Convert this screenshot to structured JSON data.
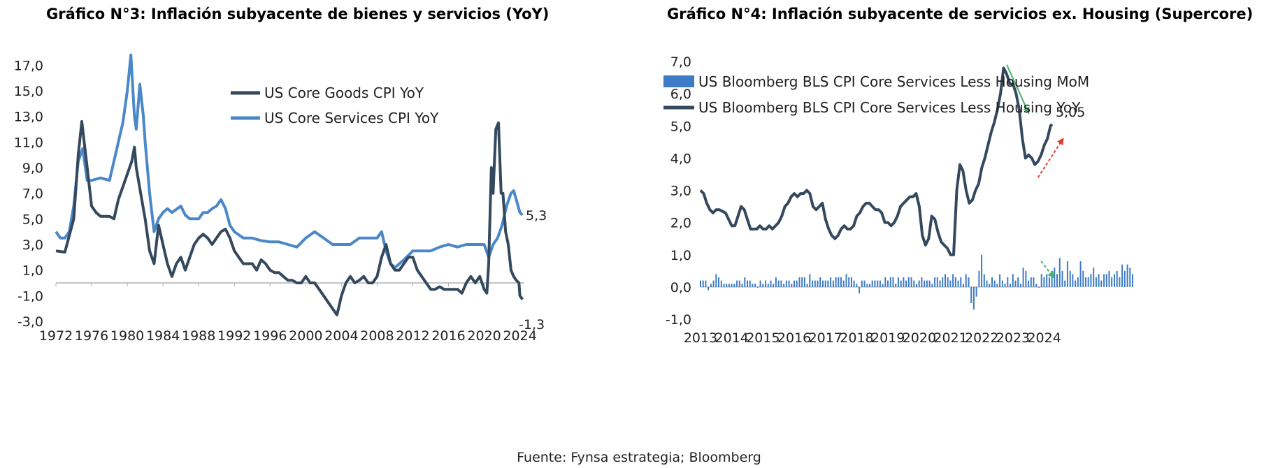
{
  "source": "Fuente: Fynsa estrategia; Bloomberg",
  "colors": {
    "dark_series": "#34495e",
    "light_series": "#4a88c9",
    "bar": "#3d7bc6",
    "arrow_down": "#46b36a",
    "arrow_up": "#e03c31",
    "axis": "#b0b0b0"
  },
  "chart_data": [
    {
      "type": "line",
      "title": "Gráfico N°3: Inflación subyacente de bienes y servicios (YoY)",
      "xlabel": "",
      "ylabel": "",
      "xlim": [
        1972,
        2024.5
      ],
      "ylim": [
        -3.0,
        18.0
      ],
      "x_ticks": [
        "1972",
        "1976",
        "1980",
        "1984",
        "1988",
        "1992",
        "1996",
        "2000",
        "2004",
        "2008",
        "2012",
        "2016",
        "2020",
        "2024"
      ],
      "y_ticks": [
        "17,0",
        "15,0",
        "13,0",
        "11,0",
        "9,0",
        "7,0",
        "5,0",
        "3,0",
        "1,0",
        "-1,0",
        "-3,0"
      ],
      "grid": false,
      "legend_position": "top-right",
      "annotations": [
        {
          "text": "5,3",
          "x": 2024.3,
          "y": 5.3
        },
        {
          "text": "-1,3",
          "x": 2024.3,
          "y": -1.3
        }
      ],
      "series": [
        {
          "name": "US Core Goods CPI YoY",
          "color": "#34495e",
          "x": [
            1972,
            1973,
            1974,
            1974.5,
            1974.9,
            1975.5,
            1976,
            1976.5,
            1977,
            1978,
            1978.5,
            1979,
            1979.5,
            1980,
            1980.5,
            1980.8,
            1981,
            1981.5,
            1982,
            1982.5,
            1983,
            1983.5,
            1984,
            1984.5,
            1985,
            1985.5,
            1986,
            1986.5,
            1987,
            1987.5,
            1988,
            1988.5,
            1989,
            1989.5,
            1990,
            1990.5,
            1991,
            1991.5,
            1992,
            1992.5,
            1993,
            1993.5,
            1994,
            1994.5,
            1995,
            1995.5,
            1996,
            1996.5,
            1997,
            1997.5,
            1998,
            1998.5,
            1999,
            1999.5,
            2000,
            2000.5,
            2001,
            2001.5,
            2002,
            2002.5,
            2003,
            2003.5,
            2004,
            2004.5,
            2005,
            2005.5,
            2006,
            2006.5,
            2007,
            2007.5,
            2008,
            2008.5,
            2009,
            2009.5,
            2010,
            2010.5,
            2011,
            2011.5,
            2012,
            2012.5,
            2013,
            2013.5,
            2014,
            2014.5,
            2015,
            2015.5,
            2016,
            2016.5,
            2017,
            2017.5,
            2018,
            2018.5,
            2019,
            2019.5,
            2020,
            2020.3,
            2020.5,
            2020.8,
            2021,
            2021.3,
            2021.6,
            2021.9,
            2022.1,
            2022.4,
            2022.7,
            2023,
            2023.3,
            2023.6,
            2023.9,
            2024,
            2024.3
          ],
          "values": [
            2.5,
            2.4,
            5.0,
            10.0,
            12.6,
            9.0,
            6.0,
            5.5,
            5.2,
            5.2,
            5.0,
            6.5,
            7.5,
            8.5,
            9.5,
            10.6,
            9.0,
            7.0,
            5.0,
            2.5,
            1.5,
            4.5,
            3.0,
            1.5,
            0.5,
            1.5,
            2.0,
            1.0,
            2.0,
            3.0,
            3.5,
            3.8,
            3.5,
            3.0,
            3.5,
            4.0,
            4.2,
            3.5,
            2.5,
            2.0,
            1.5,
            1.5,
            1.5,
            1.0,
            1.8,
            1.5,
            1.0,
            0.8,
            0.8,
            0.5,
            0.2,
            0.2,
            0.0,
            0.0,
            0.5,
            0.0,
            0.0,
            -0.5,
            -1.0,
            -1.5,
            -2.0,
            -2.5,
            -1.0,
            0.0,
            0.5,
            0.0,
            0.2,
            0.5,
            0.0,
            0.0,
            0.5,
            2.0,
            3.0,
            1.5,
            1.0,
            1.0,
            1.5,
            2.0,
            2.0,
            1.0,
            0.5,
            0.0,
            -0.5,
            -0.5,
            -0.3,
            -0.5,
            -0.5,
            -0.5,
            -0.5,
            -0.8,
            0.0,
            0.5,
            0.0,
            0.5,
            -0.5,
            -0.8,
            1.5,
            9.0,
            7.0,
            12.0,
            12.5,
            7.0,
            7.0,
            4.0,
            3.0,
            1.0,
            0.5,
            0.2,
            0.0,
            -1.0,
            -1.3
          ]
        },
        {
          "name": "US Core Services CPI YoY",
          "color": "#4a88c9",
          "x": [
            1972,
            1972.5,
            1973,
            1973.5,
            1974,
            1974.5,
            1975,
            1975.5,
            1976,
            1977,
            1978,
            1978.5,
            1979,
            1979.5,
            1980,
            1980.4,
            1980.8,
            1981,
            1981.4,
            1981.8,
            1982,
            1982.5,
            1983,
            1983.5,
            1984,
            1984.5,
            1985,
            1986,
            1986.5,
            1987,
            1988,
            1988.5,
            1989,
            1989.5,
            1990,
            1990.5,
            1991,
            1991.5,
            1992,
            1993,
            1994,
            1995,
            1996,
            1997,
            1998,
            1999,
            2000,
            2001,
            2002,
            2003,
            2004,
            2005,
            2006,
            2007,
            2008,
            2008.5,
            2009,
            2009.5,
            2010,
            2010.5,
            2011,
            2012,
            2013,
            2014,
            2015,
            2016,
            2017,
            2018,
            2019,
            2020,
            2020.5,
            2021,
            2021.5,
            2022,
            2022.5,
            2023,
            2023.3,
            2023.6,
            2024,
            2024.3
          ],
          "values": [
            4.0,
            3.5,
            3.5,
            4.0,
            6.0,
            9.5,
            10.5,
            8.0,
            8.0,
            8.2,
            8.0,
            9.5,
            11.0,
            12.5,
            15.0,
            17.8,
            13.0,
            12.0,
            15.5,
            13.0,
            11.0,
            7.0,
            4.0,
            5.0,
            5.5,
            5.8,
            5.5,
            6.0,
            5.3,
            5.0,
            5.0,
            5.5,
            5.5,
            5.8,
            6.0,
            6.5,
            5.8,
            4.5,
            4.0,
            3.5,
            3.5,
            3.3,
            3.2,
            3.2,
            3.0,
            2.8,
            3.5,
            4.0,
            3.5,
            3.0,
            3.0,
            3.0,
            3.5,
            3.5,
            3.5,
            4.0,
            2.5,
            1.5,
            1.2,
            1.5,
            1.8,
            2.5,
            2.5,
            2.5,
            2.8,
            3.0,
            2.8,
            3.0,
            3.0,
            3.0,
            2.0,
            3.0,
            3.5,
            4.5,
            6.0,
            7.0,
            7.2,
            6.5,
            5.5,
            5.3
          ]
        }
      ]
    },
    {
      "type": "bar",
      "title": "Gráfico N°4: Inflación subyacente de servicios ex. Housing (Supercore)",
      "xlabel": "",
      "ylabel": "",
      "xlim": [
        2013,
        2024.5
      ],
      "ylim": [
        -1.0,
        7.0
      ],
      "x_ticks": [
        "2013",
        "2014",
        "2015",
        "2016",
        "2017",
        "2018",
        "2019",
        "2020",
        "2021",
        "2022",
        "2023",
        "2024"
      ],
      "y_ticks": [
        "7,0",
        "6,0",
        "5,0",
        "4,0",
        "3,0",
        "2,0",
        "1,0",
        "0,0",
        "-1,0"
      ],
      "grid": false,
      "legend_position": "top-left",
      "annotations": [
        {
          "text": "5,05",
          "x": 2024.25,
          "y": 5.05
        }
      ],
      "series": [
        {
          "name": "US Bloomberg BLS CPI Core Services Less Housing MoM",
          "type": "bar",
          "color": "#3d7bc6",
          "start": 2013.0,
          "step": 0.0833,
          "values": [
            0.2,
            0.2,
            0.2,
            -0.1,
            0.1,
            0.2,
            0.4,
            0.3,
            0.2,
            0.1,
            0.1,
            0.1,
            0.1,
            0.1,
            0.2,
            0.2,
            0.1,
            0.3,
            0.2,
            0.2,
            0.1,
            0.1,
            0.0,
            0.2,
            0.1,
            0.2,
            0.1,
            0.2,
            0.1,
            0.3,
            0.2,
            0.2,
            0.1,
            0.2,
            0.2,
            0.1,
            0.2,
            0.2,
            0.3,
            0.3,
            0.3,
            0.1,
            0.4,
            0.2,
            0.2,
            0.2,
            0.3,
            0.2,
            0.2,
            0.2,
            0.3,
            0.2,
            0.3,
            0.3,
            0.3,
            0.2,
            0.4,
            0.3,
            0.3,
            0.2,
            0.1,
            -0.2,
            0.2,
            0.2,
            0.1,
            0.1,
            0.2,
            0.2,
            0.2,
            0.2,
            0.1,
            0.3,
            0.2,
            0.3,
            0.3,
            0.1,
            0.3,
            0.2,
            0.3,
            0.2,
            0.3,
            0.3,
            0.2,
            0.1,
            0.2,
            0.3,
            0.2,
            0.2,
            0.2,
            0.1,
            0.3,
            0.3,
            0.2,
            0.3,
            0.4,
            0.3,
            0.2,
            0.4,
            0.3,
            0.2,
            0.3,
            0.1,
            0.4,
            0.3,
            -0.5,
            -0.7,
            -0.3,
            0.5,
            1.0,
            0.4,
            0.2,
            0.1,
            0.3,
            0.2,
            0.1,
            0.4,
            0.2,
            0.1,
            0.3,
            0.1,
            0.4,
            0.2,
            0.3,
            0.1,
            0.6,
            0.5,
            0.2,
            0.3,
            0.3,
            0.1,
            0.0,
            0.4,
            0.3,
            0.4,
            0.3,
            0.5,
            0.6,
            0.4,
            0.9,
            0.5,
            0.2,
            0.8,
            0.5,
            0.4,
            0.2,
            0.3,
            0.8,
            0.5,
            0.3,
            0.3,
            0.4,
            0.6,
            0.3,
            0.4,
            0.2,
            0.4,
            0.4,
            0.5,
            0.3,
            0.4,
            0.5,
            0.3,
            0.7,
            0.5,
            0.7,
            0.6,
            0.4
          ]
        },
        {
          "name": "US Bloomberg BLS CPI Core Services Less Housing YoY",
          "type": "line",
          "color": "#34495e",
          "x": [
            2013,
            2013.1,
            2013.2,
            2013.3,
            2013.4,
            2013.5,
            2013.6,
            2013.8,
            2013.9,
            2014,
            2014.1,
            2014.2,
            2014.3,
            2014.4,
            2014.5,
            2014.6,
            2014.7,
            2014.8,
            2014.9,
            2015,
            2015.1,
            2015.2,
            2015.3,
            2015.4,
            2015.5,
            2015.6,
            2015.7,
            2015.8,
            2015.9,
            2016,
            2016.1,
            2016.2,
            2016.3,
            2016.4,
            2016.5,
            2016.6,
            2016.7,
            2016.8,
            2016.9,
            2017,
            2017.1,
            2017.2,
            2017.3,
            2017.4,
            2017.5,
            2017.6,
            2017.7,
            2017.8,
            2017.9,
            2018,
            2018.1,
            2018.2,
            2018.3,
            2018.4,
            2018.5,
            2018.6,
            2018.7,
            2018.8,
            2018.9,
            2019,
            2019.1,
            2019.2,
            2019.3,
            2019.4,
            2019.5,
            2019.6,
            2019.7,
            2019.8,
            2019.9,
            2020,
            2020.1,
            2020.2,
            2020.3,
            2020.4,
            2020.5,
            2020.6,
            2020.7,
            2020.8,
            2020.9,
            2021,
            2021.1,
            2021.2,
            2021.3,
            2021.4,
            2021.5,
            2021.6,
            2021.7,
            2021.8,
            2021.9,
            2022,
            2022.1,
            2022.2,
            2022.3,
            2022.4,
            2022.5,
            2022.6,
            2022.7,
            2022.8,
            2022.9,
            2023,
            2023.1,
            2023.2,
            2023.3,
            2023.4,
            2023.5,
            2023.6,
            2023.7,
            2023.8,
            2023.9,
            2024,
            2024.1,
            2024.2,
            2024.25
          ],
          "values": [
            3.0,
            2.9,
            2.6,
            2.4,
            2.3,
            2.4,
            2.4,
            2.3,
            2.1,
            1.9,
            1.9,
            2.2,
            2.5,
            2.4,
            2.1,
            1.8,
            1.8,
            1.8,
            1.9,
            1.8,
            1.8,
            1.9,
            1.8,
            1.9,
            2.0,
            2.2,
            2.5,
            2.6,
            2.8,
            2.9,
            2.8,
            2.9,
            2.9,
            3.0,
            2.9,
            2.5,
            2.4,
            2.5,
            2.6,
            2.1,
            1.8,
            1.6,
            1.5,
            1.6,
            1.8,
            1.9,
            1.8,
            1.8,
            1.9,
            2.2,
            2.3,
            2.5,
            2.6,
            2.6,
            2.5,
            2.4,
            2.4,
            2.3,
            2.0,
            2.0,
            1.9,
            2.0,
            2.2,
            2.5,
            2.6,
            2.7,
            2.8,
            2.8,
            2.9,
            2.5,
            1.6,
            1.3,
            1.5,
            2.2,
            2.1,
            1.7,
            1.4,
            1.3,
            1.2,
            1.0,
            1.0,
            3.0,
            3.8,
            3.6,
            3.0,
            2.6,
            2.7,
            3.0,
            3.2,
            3.7,
            4.0,
            4.4,
            4.8,
            5.1,
            5.5,
            6.0,
            6.8,
            6.6,
            6.3,
            6.3,
            6.0,
            5.5,
            4.6,
            4.0,
            4.1,
            4.0,
            3.8,
            3.9,
            4.1,
            4.4,
            4.6,
            5.0,
            5.05
          ]
        }
      ],
      "arrows": [
        {
          "color": "#46b36a",
          "style": "solid",
          "from": [
            2022.8,
            6.9
          ],
          "to": [
            2023.5,
            5.4
          ]
        },
        {
          "color": "#e03c31",
          "style": "dashed",
          "from": [
            2023.8,
            3.4
          ],
          "to": [
            2024.6,
            4.6
          ]
        },
        {
          "color": "#46b36a",
          "style": "dashed",
          "from": [
            2023.9,
            0.8
          ],
          "to": [
            2024.3,
            0.3
          ]
        }
      ]
    }
  ]
}
